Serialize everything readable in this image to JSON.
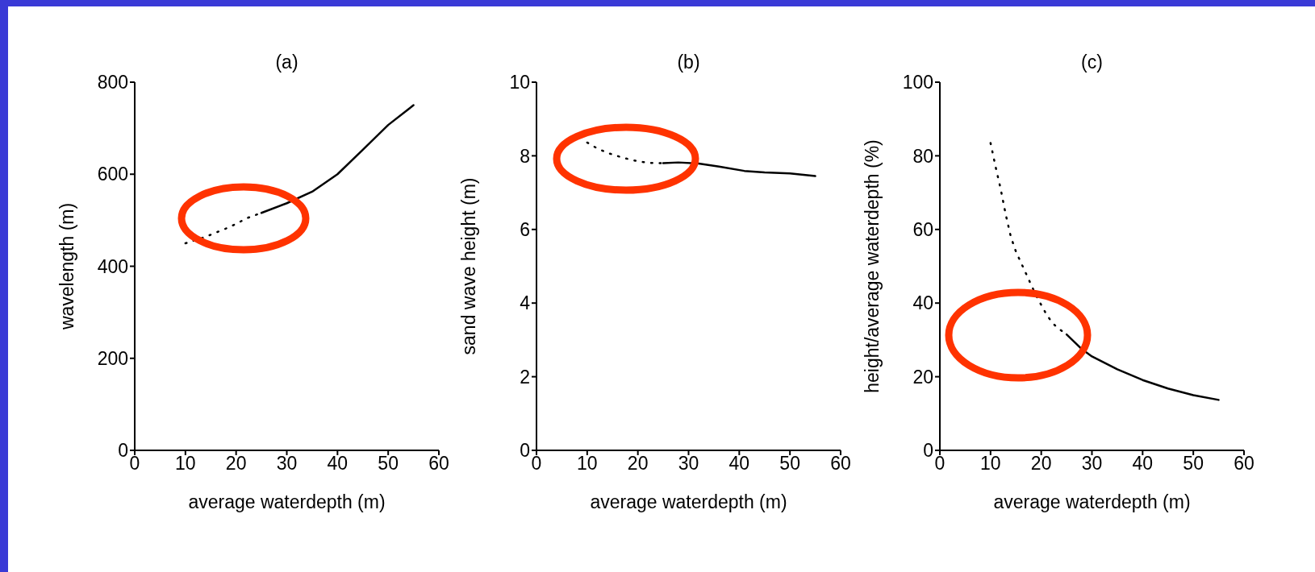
{
  "chart_data": [
    {
      "type": "line",
      "title": "(a)",
      "xlabel": "average waterdepth (m)",
      "ylabel": "wavelength (m)",
      "xlim": [
        0,
        60
      ],
      "xticks": [
        0,
        10,
        20,
        30,
        40,
        50,
        60
      ],
      "ylim": [
        0,
        800
      ],
      "yticks": [
        0,
        200,
        400,
        600,
        800
      ],
      "marker": "none",
      "series": [
        {
          "color": "#000000",
          "line_style": "dotted",
          "x": [
            10,
            12,
            14,
            16,
            18,
            20,
            22,
            25
          ],
          "values": [
            450,
            457,
            464,
            473,
            482,
            492,
            504,
            516
          ]
        },
        {
          "color": "#000000",
          "line_style": "solid",
          "x": [
            25,
            30,
            35,
            40,
            45,
            50,
            55
          ],
          "values": [
            516,
            537,
            562,
            600,
            653,
            707,
            750
          ]
        }
      ]
    },
    {
      "type": "line",
      "title": "(b)",
      "xlabel": "average waterdepth (m)",
      "ylabel": "sand wave height  (m)",
      "xlim": [
        0,
        60
      ],
      "xticks": [
        0,
        10,
        20,
        30,
        40,
        50,
        60
      ],
      "ylim": [
        0,
        10
      ],
      "yticks": [
        0,
        2,
        4,
        6,
        8,
        10
      ],
      "marker": "none",
      "series": [
        {
          "color": "#000000",
          "line_style": "dotted",
          "x": [
            10,
            12,
            14,
            17,
            20,
            22,
            25
          ],
          "values": [
            8.36,
            8.2,
            8.08,
            7.95,
            7.85,
            7.81,
            7.8
          ]
        },
        {
          "color": "#000000",
          "line_style": "solid",
          "x": [
            25,
            28,
            32,
            36,
            41,
            45,
            50,
            55
          ],
          "values": [
            7.8,
            7.82,
            7.79,
            7.71,
            7.59,
            7.55,
            7.52,
            7.45
          ]
        }
      ]
    },
    {
      "type": "line",
      "title": "(c)",
      "xlabel": "average waterdepth (m)",
      "ylabel": "height/average waterdepth (%)",
      "xlim": [
        0,
        60
      ],
      "xticks": [
        0,
        10,
        20,
        30,
        40,
        50,
        60
      ],
      "ylim": [
        0,
        100
      ],
      "yticks": [
        0,
        20,
        40,
        60,
        80,
        100
      ],
      "marker": "none",
      "series": [
        {
          "color": "#000000",
          "line_style": "dotted",
          "x": [
            10,
            11,
            12,
            13,
            14,
            15,
            16,
            17,
            18,
            19,
            20,
            21,
            22,
            23,
            24,
            25
          ],
          "values": [
            83.5,
            77,
            71,
            64,
            58,
            54,
            51,
            48,
            45,
            42,
            39.5,
            37,
            35,
            33.5,
            32.5,
            31.5
          ]
        },
        {
          "color": "#000000",
          "line_style": "solid",
          "x": [
            25,
            28,
            30,
            35,
            40,
            45,
            50,
            55
          ],
          "values": [
            31.5,
            27.5,
            25.5,
            22,
            19.1,
            16.8,
            15,
            13.7
          ]
        }
      ]
    }
  ]
}
